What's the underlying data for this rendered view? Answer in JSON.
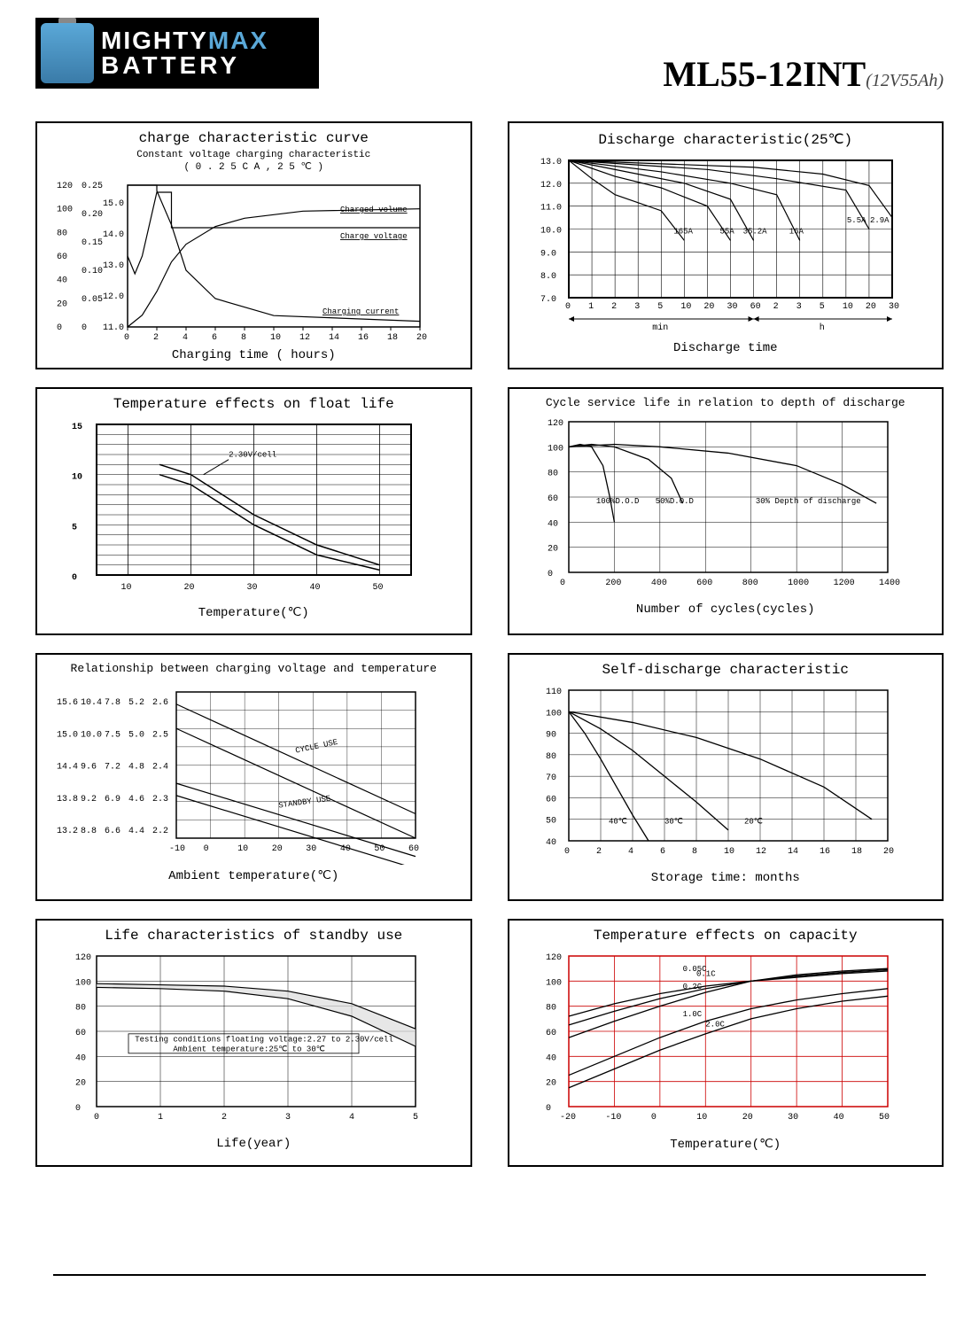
{
  "brand": {
    "line1_a": "MIGHTY",
    "line1_b": "MAX",
    "line2": "BATTERY"
  },
  "model": {
    "main": "ML55-12INT",
    "sub": "(12V55Ah)"
  },
  "panels": {
    "charge": {
      "title": "charge characteristic curve",
      "subtitle": "Constant voltage charging characteristic\n( 0 . 2 5 C A , 2 5 ℃ )",
      "xlabel": "Charging time ( hours)",
      "y_left_labels": [
        "120",
        "100",
        "80",
        "60",
        "40",
        "20",
        "0"
      ],
      "y_mid_labels": [
        "0.25",
        "0.20",
        "0.15",
        "0.10",
        "0.05",
        "0"
      ],
      "y_right_labels": [
        "15.0",
        "14.0",
        "13.0",
        "12.0",
        "11.0"
      ],
      "x_ticks": [
        "0",
        "2",
        "4",
        "6",
        "8",
        "10",
        "12",
        "14",
        "16",
        "18",
        "20"
      ],
      "annotations": [
        "Charged volume",
        "Charge voltage",
        "Charging current"
      ],
      "series": {
        "volume": [
          [
            0,
            0
          ],
          [
            1,
            10
          ],
          [
            2,
            30
          ],
          [
            3,
            55
          ],
          [
            4,
            70
          ],
          [
            6,
            85
          ],
          [
            8,
            92
          ],
          [
            12,
            98
          ],
          [
            20,
            100
          ]
        ],
        "voltage": [
          [
            0,
            13.0
          ],
          [
            0.5,
            12.5
          ],
          [
            1,
            13.0
          ],
          [
            2,
            14.8
          ],
          [
            2,
            14.8
          ],
          [
            3,
            14.8
          ],
          [
            3,
            13.8
          ],
          [
            20,
            13.8
          ]
        ],
        "current": [
          [
            0,
            0.25
          ],
          [
            2,
            0.25
          ],
          [
            2,
            0.24
          ],
          [
            3,
            0.18
          ],
          [
            4,
            0.1
          ],
          [
            6,
            0.05
          ],
          [
            10,
            0.02
          ],
          [
            20,
            0.01
          ]
        ]
      },
      "grid_color": "#000000",
      "line_color": "#000000"
    },
    "discharge": {
      "title": "Discharge characteristic(25℃)",
      "xlabel": "Discharge time",
      "x_segments": [
        "min",
        "h"
      ],
      "y_ticks": [
        "13.0",
        "12.0",
        "11.0",
        "10.0",
        "9.0",
        "8.0",
        "7.0"
      ],
      "x_ticks": [
        "0",
        "1",
        "2",
        "3",
        "5",
        "10",
        "20",
        "30",
        "60",
        "2",
        "3",
        "5",
        "10",
        "20",
        "30"
      ],
      "curve_labels": [
        "165A",
        "55A",
        "35.2A",
        "16A",
        "5.5A",
        "2.9A"
      ],
      "series": [
        [
          [
            0,
            13.0
          ],
          [
            1,
            12.2
          ],
          [
            2,
            11.5
          ],
          [
            4,
            10.8
          ],
          [
            5,
            9.5
          ]
        ],
        [
          [
            0,
            13.0
          ],
          [
            2,
            12.3
          ],
          [
            4,
            11.8
          ],
          [
            6,
            11.0
          ],
          [
            7,
            9.5
          ]
        ],
        [
          [
            0,
            13.0
          ],
          [
            3,
            12.4
          ],
          [
            5,
            12.0
          ],
          [
            7,
            11.3
          ],
          [
            8,
            9.5
          ]
        ],
        [
          [
            0,
            13.0
          ],
          [
            4,
            12.5
          ],
          [
            7,
            12.0
          ],
          [
            9,
            11.5
          ],
          [
            10,
            9.5
          ]
        ],
        [
          [
            0,
            13.0
          ],
          [
            6,
            12.6
          ],
          [
            9,
            12.2
          ],
          [
            12,
            11.7
          ],
          [
            13,
            10.0
          ]
        ],
        [
          [
            0,
            13.0
          ],
          [
            8,
            12.7
          ],
          [
            11,
            12.4
          ],
          [
            13,
            11.9
          ],
          [
            14,
            10.5
          ]
        ]
      ],
      "grid_color": "#000000"
    },
    "floatlife": {
      "title": "Temperature effects on float life",
      "xlabel": "Temperature(℃)",
      "annotation": "2.30V/cell",
      "y_ticks": [
        "15",
        "10",
        "5",
        "0"
      ],
      "x_ticks": [
        "10",
        "20",
        "30",
        "40",
        "50"
      ],
      "series": {
        "upper": [
          [
            15,
            11
          ],
          [
            20,
            10
          ],
          [
            25,
            8
          ],
          [
            30,
            6
          ],
          [
            40,
            3
          ],
          [
            50,
            1
          ]
        ],
        "lower": [
          [
            15,
            10
          ],
          [
            20,
            9
          ],
          [
            25,
            7
          ],
          [
            30,
            5
          ],
          [
            40,
            2
          ],
          [
            50,
            0.5
          ]
        ]
      },
      "grid_color": "#000000"
    },
    "cycle": {
      "title": "Cycle service life in relation to depth of discharge",
      "xlabel": "Number of cycles(cycles)",
      "y_ticks": [
        "120",
        "100",
        "80",
        "60",
        "40",
        "20",
        "0"
      ],
      "x_ticks": [
        "0",
        "200",
        "400",
        "600",
        "800",
        "1000",
        "1200",
        "1400"
      ],
      "curve_labels": [
        "100%D.O.D",
        "50%D.O.D",
        "30% Depth of discharge"
      ],
      "series": [
        [
          [
            0,
            100
          ],
          [
            50,
            102
          ],
          [
            100,
            100
          ],
          [
            150,
            85
          ],
          [
            180,
            60
          ],
          [
            200,
            40
          ]
        ],
        [
          [
            0,
            100
          ],
          [
            100,
            102
          ],
          [
            200,
            100
          ],
          [
            350,
            90
          ],
          [
            450,
            75
          ],
          [
            500,
            55
          ]
        ],
        [
          [
            0,
            100
          ],
          [
            200,
            102
          ],
          [
            400,
            100
          ],
          [
            700,
            95
          ],
          [
            1000,
            85
          ],
          [
            1200,
            70
          ],
          [
            1350,
            55
          ]
        ]
      ],
      "grid_color": "#000000"
    },
    "chargevolt": {
      "title": "Relationship between charging voltage and temperature",
      "xlabel": "Ambient temperature(℃)",
      "y_col_labels": [
        [
          "15.6",
          "15.0",
          "14.4",
          "13.8",
          "13.2"
        ],
        [
          "10.4",
          "10.0",
          "9.6",
          "9.2",
          "8.8"
        ],
        [
          "7.8",
          "7.5",
          "7.2",
          "6.9",
          "6.6"
        ],
        [
          "5.2",
          "5.0",
          "4.8",
          "4.6",
          "4.4"
        ],
        [
          "2.6",
          "2.5",
          "2.4",
          "2.3",
          "2.2"
        ]
      ],
      "x_ticks": [
        "-10",
        "0",
        "10",
        "20",
        "30",
        "40",
        "50",
        "60"
      ],
      "annotations": [
        "CYCLE USE",
        "STANDBY USE"
      ],
      "series": {
        "cycle_upper": [
          [
            -10,
            15.4
          ],
          [
            60,
            13.6
          ]
        ],
        "cycle_lower": [
          [
            -10,
            15.0
          ],
          [
            60,
            13.2
          ]
        ],
        "standby_upper": [
          [
            -10,
            14.1
          ],
          [
            60,
            12.9
          ]
        ],
        "standby_lower": [
          [
            -10,
            13.9
          ],
          [
            60,
            12.7
          ]
        ]
      },
      "grid_color": "#000000"
    },
    "selfdischarge": {
      "title": "Self-discharge characteristic",
      "xlabel": "Storage time: months",
      "y_ticks": [
        "110",
        "100",
        "90",
        "80",
        "70",
        "60",
        "50",
        "40"
      ],
      "x_ticks": [
        "0",
        "2",
        "4",
        "6",
        "8",
        "10",
        "12",
        "14",
        "16",
        "18",
        "20"
      ],
      "curve_labels": [
        "40℃",
        "30℃",
        "20℃"
      ],
      "series": [
        [
          [
            0,
            100
          ],
          [
            1,
            90
          ],
          [
            2,
            78
          ],
          [
            3,
            65
          ],
          [
            4,
            52
          ],
          [
            5,
            40
          ]
        ],
        [
          [
            0,
            100
          ],
          [
            2,
            92
          ],
          [
            4,
            82
          ],
          [
            6,
            70
          ],
          [
            8,
            58
          ],
          [
            10,
            45
          ]
        ],
        [
          [
            0,
            100
          ],
          [
            4,
            95
          ],
          [
            8,
            88
          ],
          [
            12,
            78
          ],
          [
            16,
            65
          ],
          [
            19,
            50
          ]
        ]
      ],
      "grid_color": "#000000"
    },
    "standby": {
      "title": "Life characteristics of standby use",
      "xlabel": "Life(year)",
      "note": "Testing conditions floating voltage:2.27 to 2.30V/cell",
      "note2": "Ambient temperature:25℃ to 30℃",
      "y_ticks": [
        "120",
        "100",
        "80",
        "60",
        "40",
        "20",
        "0"
      ],
      "x_ticks": [
        "0",
        "1",
        "2",
        "3",
        "4",
        "5"
      ],
      "series": {
        "upper": [
          [
            0,
            98
          ],
          [
            1,
            97
          ],
          [
            2,
            96
          ],
          [
            3,
            92
          ],
          [
            4,
            82
          ],
          [
            5,
            62
          ]
        ],
        "lower": [
          [
            0,
            95
          ],
          [
            1,
            94
          ],
          [
            2,
            92
          ],
          [
            3,
            86
          ],
          [
            4,
            72
          ],
          [
            5,
            48
          ]
        ]
      },
      "grid_color": "#000000"
    },
    "tempcap": {
      "title": "Temperature effects on  capacity",
      "xlabel": "Temperature(℃)",
      "y_ticks": [
        "120",
        "100",
        "80",
        "60",
        "40",
        "20",
        "0"
      ],
      "x_ticks": [
        "-20",
        "-10",
        "0",
        "10",
        "20",
        "30",
        "40",
        "50"
      ],
      "curve_labels": [
        "0.05C",
        "0.1C",
        "0.2C",
        "1.0C",
        "2.0C"
      ],
      "series": [
        [
          [
            -20,
            72
          ],
          [
            -10,
            82
          ],
          [
            0,
            90
          ],
          [
            10,
            96
          ],
          [
            20,
            100
          ],
          [
            30,
            103
          ],
          [
            40,
            106
          ],
          [
            50,
            108
          ]
        ],
        [
          [
            -20,
            65
          ],
          [
            -10,
            76
          ],
          [
            0,
            86
          ],
          [
            10,
            94
          ],
          [
            20,
            100
          ],
          [
            30,
            104
          ],
          [
            40,
            107
          ],
          [
            50,
            109
          ]
        ],
        [
          [
            -20,
            55
          ],
          [
            -10,
            68
          ],
          [
            0,
            80
          ],
          [
            10,
            91
          ],
          [
            20,
            100
          ],
          [
            30,
            105
          ],
          [
            40,
            108
          ],
          [
            50,
            110
          ]
        ],
        [
          [
            -20,
            25
          ],
          [
            -10,
            40
          ],
          [
            0,
            55
          ],
          [
            10,
            68
          ],
          [
            20,
            78
          ],
          [
            30,
            85
          ],
          [
            40,
            90
          ],
          [
            50,
            94
          ]
        ],
        [
          [
            -20,
            15
          ],
          [
            -10,
            30
          ],
          [
            0,
            45
          ],
          [
            10,
            58
          ],
          [
            20,
            70
          ],
          [
            30,
            78
          ],
          [
            40,
            84
          ],
          [
            50,
            88
          ]
        ]
      ],
      "grid_color": "#cc0000",
      "line_color": "#000000"
    }
  }
}
